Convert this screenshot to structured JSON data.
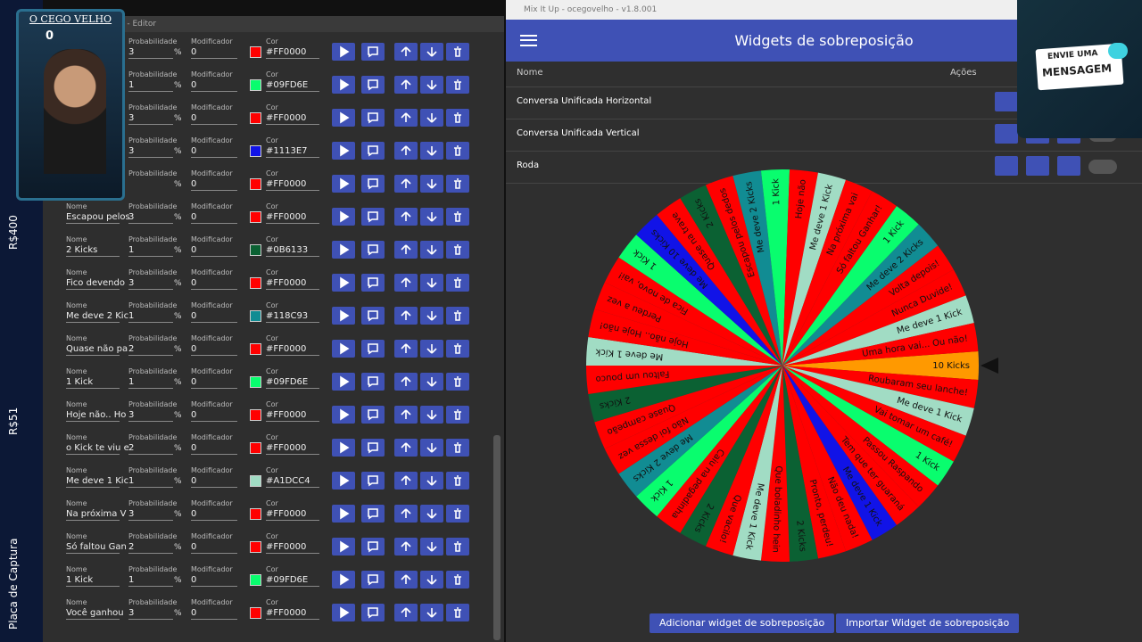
{
  "sidebar": {
    "labels": [
      "R$400",
      "R$51",
      "Placa de Captura"
    ]
  },
  "webcam": {
    "name": "O CEGO VELHO",
    "count": 0
  },
  "editor": {
    "title": "o - Editor",
    "field_labels": {
      "name": "Nome",
      "probability": "Probabilidade",
      "percent": "%",
      "modifier": "Modificador",
      "color": "Cor"
    },
    "rows": [
      {
        "probability": 3,
        "modifier": 0,
        "color": "#FF0000"
      },
      {
        "probability": 1,
        "modifier": 0,
        "color": "#09FD6E"
      },
      {
        "probability": 3,
        "modifier": 0,
        "color": "#FF0000"
      },
      {
        "probability": 3,
        "modifier": 0,
        "color": "#1113E7"
      },
      {
        "modifier": 0,
        "color": "#FF0000"
      },
      {
        "name": "Escapou pelos",
        "probability": 3,
        "modifier": 0,
        "color": "#FF0000"
      },
      {
        "name": "2 Kicks",
        "probability": 1,
        "modifier": 0,
        "color": "#0B6133"
      },
      {
        "name": "Fico devendo",
        "probability": 3,
        "modifier": 0,
        "color": "#FF0000"
      },
      {
        "name": "Me deve 2 Kic",
        "probability": 1,
        "modifier": 0,
        "color": "#118C93"
      },
      {
        "name": "Quase não pa",
        "probability": 2,
        "modifier": 0,
        "color": "#FF0000"
      },
      {
        "name": "1 Kick",
        "probability": 1,
        "modifier": 0,
        "color": "#09FD6E"
      },
      {
        "name": "Hoje não.. Ho",
        "probability": 3,
        "modifier": 0,
        "color": "#FF0000"
      },
      {
        "name": "o Kick te viu e",
        "probability": 2,
        "modifier": 0,
        "color": "#FF0000"
      },
      {
        "name": "Me deve 1 Kic",
        "probability": 1,
        "modifier": 0,
        "color": "#A1DCC4"
      },
      {
        "name": "Na próxima V",
        "probability": 3,
        "modifier": 0,
        "color": "#FF0000"
      },
      {
        "name": "Só faltou Gan",
        "probability": 2,
        "modifier": 0,
        "color": "#FF0000"
      },
      {
        "name": "1 Kick",
        "probability": 1,
        "modifier": 0,
        "color": "#09FD6E"
      },
      {
        "name": "Você ganhou",
        "probability": 3,
        "modifier": 0,
        "color": "#FF0000"
      }
    ]
  },
  "app": {
    "title": "Mix It Up - ocegovelho - v1.8.001",
    "header": "Widgets de sobreposição",
    "columns": [
      "Nome",
      "Ações"
    ],
    "widgets": [
      "Conversa Unificada Horizontal",
      "Conversa Unificada Vertical",
      "Roda"
    ],
    "buttons": [
      "Adicionar widget de sobreposição",
      "Importar Widget de sobreposição"
    ]
  },
  "wheel": {
    "segments": [
      {
        "label": "10 Kicks",
        "color": "#FF9900"
      },
      {
        "label": "Roubaram seu lanche!",
        "color": "#FF0000"
      },
      {
        "label": "Me deve 1 Kick",
        "color": "#A1DCC4"
      },
      {
        "label": "Vai tomar um café!",
        "color": "#FF0000"
      },
      {
        "label": "1 Kick",
        "color": "#09FD6E"
      },
      {
        "label": "Passou Raspando",
        "color": "#FF0000"
      },
      {
        "label": "Tem que ter guaraná",
        "color": "#FF0000"
      },
      {
        "label": "Me deve 1 Kick",
        "color": "#1113E7"
      },
      {
        "label": "Não deu nada!",
        "color": "#FF0000"
      },
      {
        "label": "Pronto, perdeu!",
        "color": "#FF0000"
      },
      {
        "label": "2 Kicks",
        "color": "#0B6133"
      },
      {
        "label": "Que boladinho hein",
        "color": "#FF0000"
      },
      {
        "label": "Me deve 1 Kick",
        "color": "#A1DCC4"
      },
      {
        "label": "Que vacilo!",
        "color": "#FF0000"
      },
      {
        "label": "2 Kicks",
        "color": "#0B6133"
      },
      {
        "label": "Caiu na pegadinha",
        "color": "#FF0000"
      },
      {
        "label": "1 Kick",
        "color": "#09FD6E"
      },
      {
        "label": "Me deve 2 Kicks",
        "color": "#118C93"
      },
      {
        "label": "Não foi dessa vez",
        "color": "#FF0000"
      },
      {
        "label": "Quase campeão",
        "color": "#FF0000"
      },
      {
        "label": "2 Kicks",
        "color": "#0B6133"
      },
      {
        "label": "Faltou um pouco",
        "color": "#FF0000"
      },
      {
        "label": "Me deve 1 Kick",
        "color": "#A1DCC4"
      },
      {
        "label": "Hoje não.. Hoje não!",
        "color": "#FF0000"
      },
      {
        "label": "Perdeu a vez",
        "color": "#FF0000"
      },
      {
        "label": "Fica de novo, vai!",
        "color": "#FF0000"
      },
      {
        "label": "1 Kick",
        "color": "#09FD6E"
      },
      {
        "label": "Me deve 10 Kicks",
        "color": "#1113E7"
      },
      {
        "label": "Quase na trave",
        "color": "#FF0000"
      },
      {
        "label": "2 Kicks",
        "color": "#0B6133"
      },
      {
        "label": "Escapou pelos dedos",
        "color": "#FF0000"
      },
      {
        "label": "Me deve 2 Kicks",
        "color": "#118C93"
      },
      {
        "label": "1 Kick",
        "color": "#09FD6E"
      },
      {
        "label": "Hoje não",
        "color": "#FF0000"
      },
      {
        "label": "Me deve 1 Kick",
        "color": "#A1DCC4"
      },
      {
        "label": "Na próxima vai",
        "color": "#FF0000"
      },
      {
        "label": "Só faltou Ganhar!",
        "color": "#FF0000"
      },
      {
        "label": "1 Kick",
        "color": "#09FD6E"
      },
      {
        "label": "Me deve 2 Kicks",
        "color": "#118C93"
      },
      {
        "label": "Volta depois!",
        "color": "#FF0000"
      },
      {
        "label": "Nunca Duvide!",
        "color": "#FF0000"
      },
      {
        "label": "Me deve 1 Kick",
        "color": "#A1DCC4"
      },
      {
        "label": "Uma hora vai... Ou não!",
        "color": "#FF0000"
      }
    ]
  },
  "overlay": {
    "lines": [
      "ENVIE UMA",
      "MENSAGEM"
    ]
  }
}
